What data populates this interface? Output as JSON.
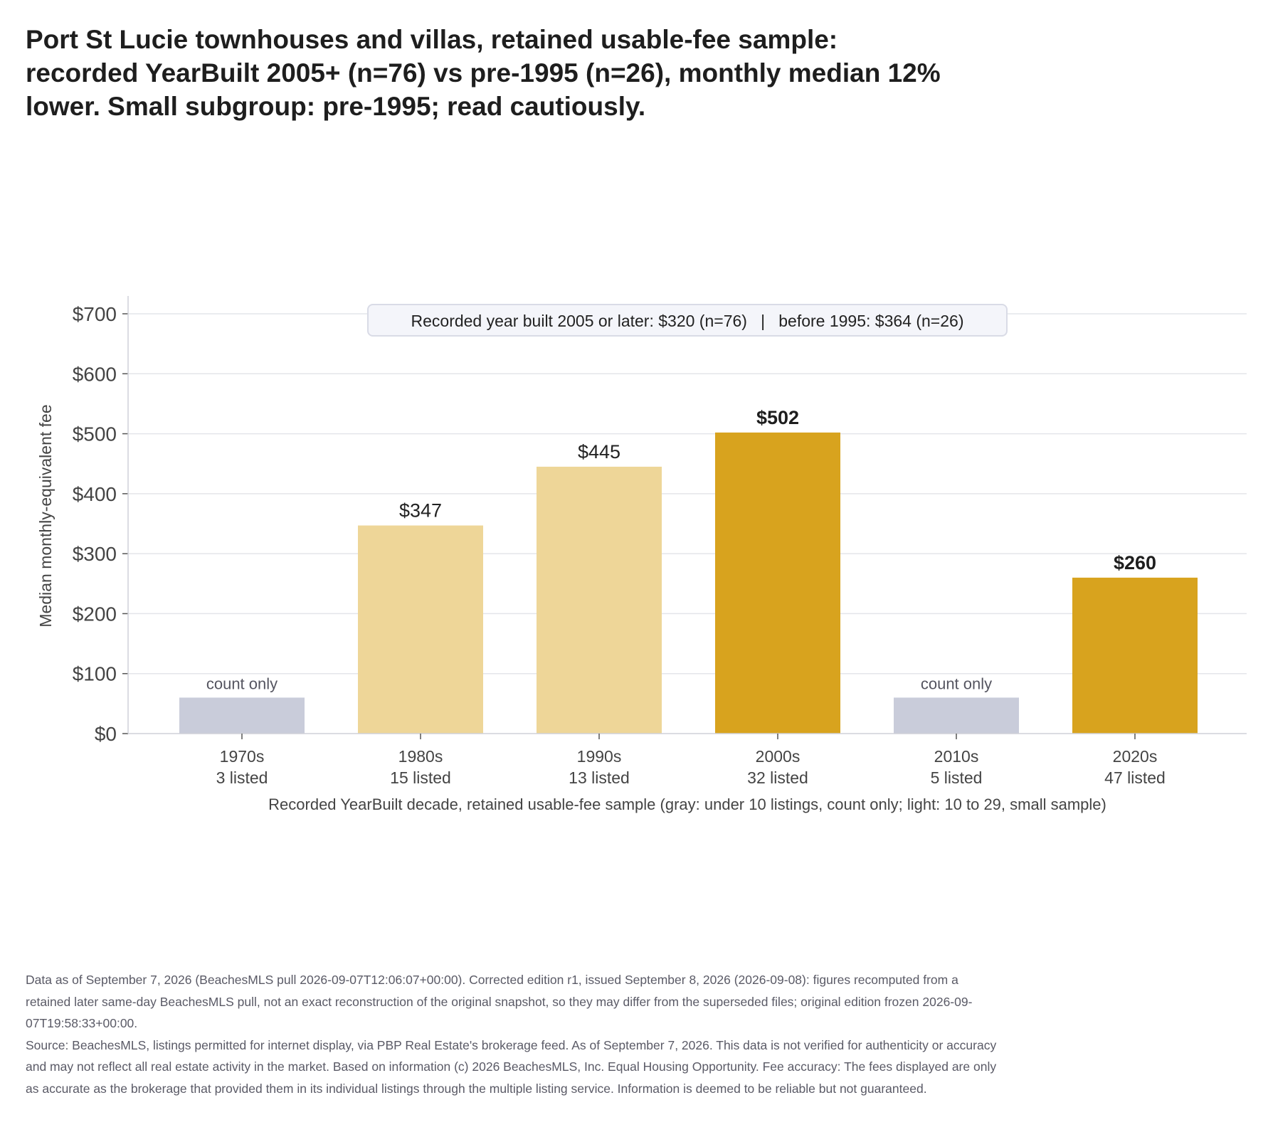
{
  "title": "Port St Lucie townhouses and villas, retained usable-fee sample: recorded YearBuilt 2005+ (n=76) vs pre-1995 (n=26), monthly median 12% lower. Small subgroup: pre-1995; read cautiously.",
  "chart_data": {
    "type": "bar",
    "title": "Port St Lucie townhouses and villas, retained usable-fee sample: recorded YearBuilt 2005+ (n=76) vs pre-1995 (n=26), monthly median 12% lower. Small subgroup: pre-1995; read cautiously.",
    "ylabel": "Median monthly-equivalent fee",
    "xlabel": "Recorded YearBuilt decade, retained usable-fee sample (gray: under 10 listings, count only; light: 10 to 29, small sample)",
    "ylim": [
      0,
      700
    ],
    "yticks": [
      0,
      100,
      200,
      300,
      400,
      500,
      600,
      700
    ],
    "ytick_labels": [
      "$0",
      "$100",
      "$200",
      "$300",
      "$400",
      "$500",
      "$600",
      "$700"
    ],
    "grid": true,
    "annotation": "Recorded year built 2005 or later: $320 (n=76)   |   before 1995: $364 (n=26)",
    "categories": [
      "1970s",
      "1980s",
      "1990s",
      "2000s",
      "2010s",
      "2020s"
    ],
    "counts": [
      "3 listed",
      "15 listed",
      "13 listed",
      "32 listed",
      "5 listed",
      "47 listed"
    ],
    "values": [
      null,
      347,
      445,
      502,
      null,
      260
    ],
    "value_labels": [
      "count only",
      "$347",
      "$445",
      "$502",
      "count only",
      "$260"
    ],
    "placeholder_height": 60,
    "tiers": [
      "count-only",
      "small",
      "small",
      "full",
      "count-only",
      "full"
    ],
    "colors": {
      "count-only": "#c9ccda",
      "small": "#eed698",
      "full": "#d8a31e"
    },
    "label_colors": {
      "count-only": "#555560",
      "small": "#222222",
      "full": "#1e1e1e"
    }
  },
  "notes": [
    "Data as of September 7, 2026 (BeachesMLS pull 2026-09-07T12:06:07+00:00). Corrected edition r1, issued September 8, 2026 (2026-09-08): figures recomputed from a retained later same-day BeachesMLS pull, not an exact reconstruction of the original snapshot, so they may differ from the superseded files; original edition frozen 2026-09-07T19:58:33+00:00.",
    "Source: BeachesMLS, listings permitted for internet display, via PBP Real Estate's brokerage feed. As of September 7, 2026. This data is not verified for authenticity or accuracy and may not reflect all real estate activity in the market. Based on information (c) 2026 BeachesMLS, Inc. Equal Housing Opportunity. Fee accuracy: The fees displayed are only as accurate as the brokerage that provided them in its individual listings through the multiple listing service. Information is deemed to be reliable but not guaranteed."
  ]
}
